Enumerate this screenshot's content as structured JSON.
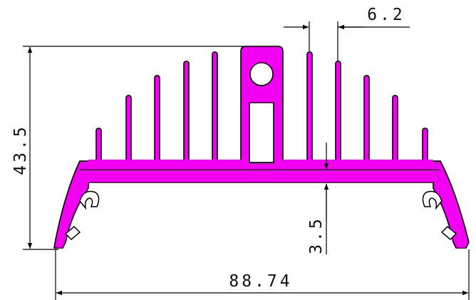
{
  "drawing": {
    "profile_color": "#f200f2",
    "line_color": "#000000",
    "dimensions": {
      "overall_width": "88.74",
      "overall_height": "43.5",
      "fin_pitch": "6.2",
      "base_thickness": "3.5"
    }
  }
}
